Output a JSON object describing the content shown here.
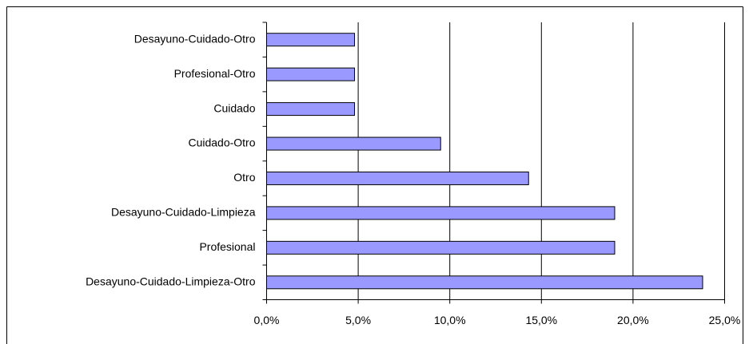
{
  "chart_data": {
    "type": "bar",
    "orientation": "horizontal",
    "categories": [
      "Desayuno-Cuidado-Otro",
      "Profesional-Otro",
      "Cuidado",
      "Cuidado-Otro",
      "Otro",
      "Desayuno-Cuidado-Limpieza",
      "Profesional",
      "Desayuno-Cuidado-Limpieza-Otro"
    ],
    "values": [
      4.8,
      4.8,
      4.8,
      9.5,
      14.3,
      19.0,
      19.0,
      23.8
    ],
    "color": "#9999ff",
    "xlim": [
      0,
      25
    ],
    "xticks": [
      {
        "value": 0,
        "label": "0,0%"
      },
      {
        "value": 5,
        "label": "5,0%"
      },
      {
        "value": 10,
        "label": "10,0%"
      },
      {
        "value": 15,
        "label": "15,0%"
      },
      {
        "value": 20,
        "label": "20,0%"
      },
      {
        "value": 25,
        "label": "25,0%"
      }
    ],
    "grid": true
  }
}
